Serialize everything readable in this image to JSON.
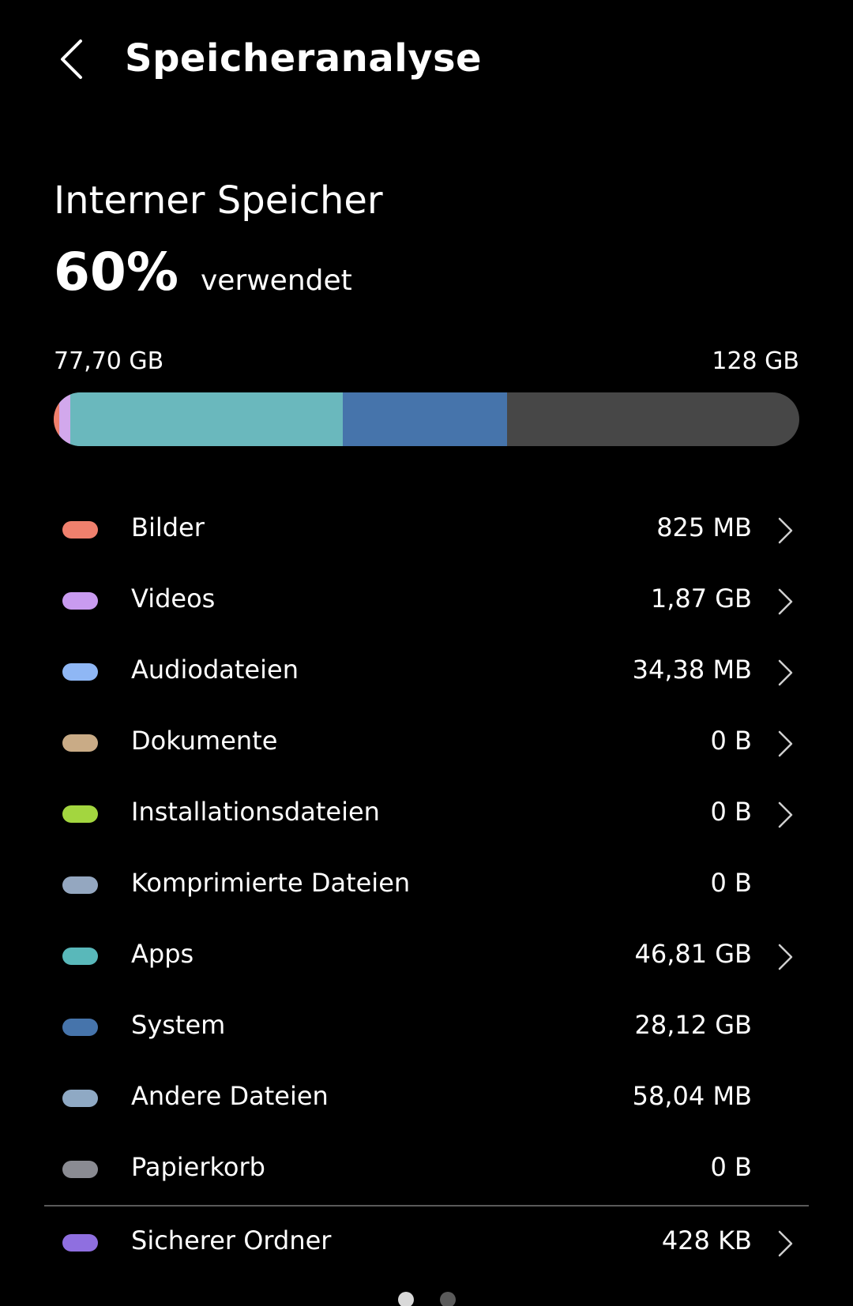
{
  "header": {
    "title": "Speicheranalyse",
    "back_icon": "chevron-left-icon"
  },
  "storage": {
    "title": "Interner Speicher",
    "percent_used": "60%",
    "percent_suffix": "verwendet",
    "used_label": "77,70 GB",
    "total_label": "128 GB",
    "bar_segments": [
      {
        "category": "Bilder",
        "fraction": 0.007,
        "color": "#f0806d"
      },
      {
        "category": "Videos",
        "fraction": 0.015,
        "color": "#d2a8ec"
      },
      {
        "category": "Apps",
        "fraction": 0.366,
        "color": "#6ab8bd"
      },
      {
        "category": "System",
        "fraction": 0.22,
        "color": "#4674ab"
      }
    ]
  },
  "categories": [
    {
      "label": "Bilder",
      "value": "825 MB",
      "color": "#f0806d",
      "has_chevron": true
    },
    {
      "label": "Videos",
      "value": "1,87 GB",
      "color": "#c99bf0",
      "has_chevron": true
    },
    {
      "label": "Audiodateien",
      "value": "34,38 MB",
      "color": "#8fb7f5",
      "has_chevron": true
    },
    {
      "label": "Dokumente",
      "value": "0 B",
      "color": "#c9ab86",
      "has_chevron": true
    },
    {
      "label": "Installationsdateien",
      "value": "0 B",
      "color": "#a3d63f",
      "has_chevron": true
    },
    {
      "label": "Komprimierte Dateien",
      "value": "0 B",
      "color": "#94a7c0",
      "has_chevron": false
    },
    {
      "label": "Apps",
      "value": "46,81 GB",
      "color": "#59b8ba",
      "has_chevron": true
    },
    {
      "label": "System",
      "value": "28,12 GB",
      "color": "#4674ab",
      "has_chevron": false
    },
    {
      "label": "Andere Dateien",
      "value": "58,04 MB",
      "color": "#8fa9c4",
      "has_chevron": false
    },
    {
      "label": "Papierkorb",
      "value": "0 B",
      "color": "#8a8b92",
      "has_chevron": false
    }
  ],
  "secure_folder": {
    "label": "Sicherer Ordner",
    "value": "428 KB",
    "color": "#8f6fe0",
    "has_chevron": true
  },
  "pager": {
    "count": 2,
    "active_index": 0
  }
}
